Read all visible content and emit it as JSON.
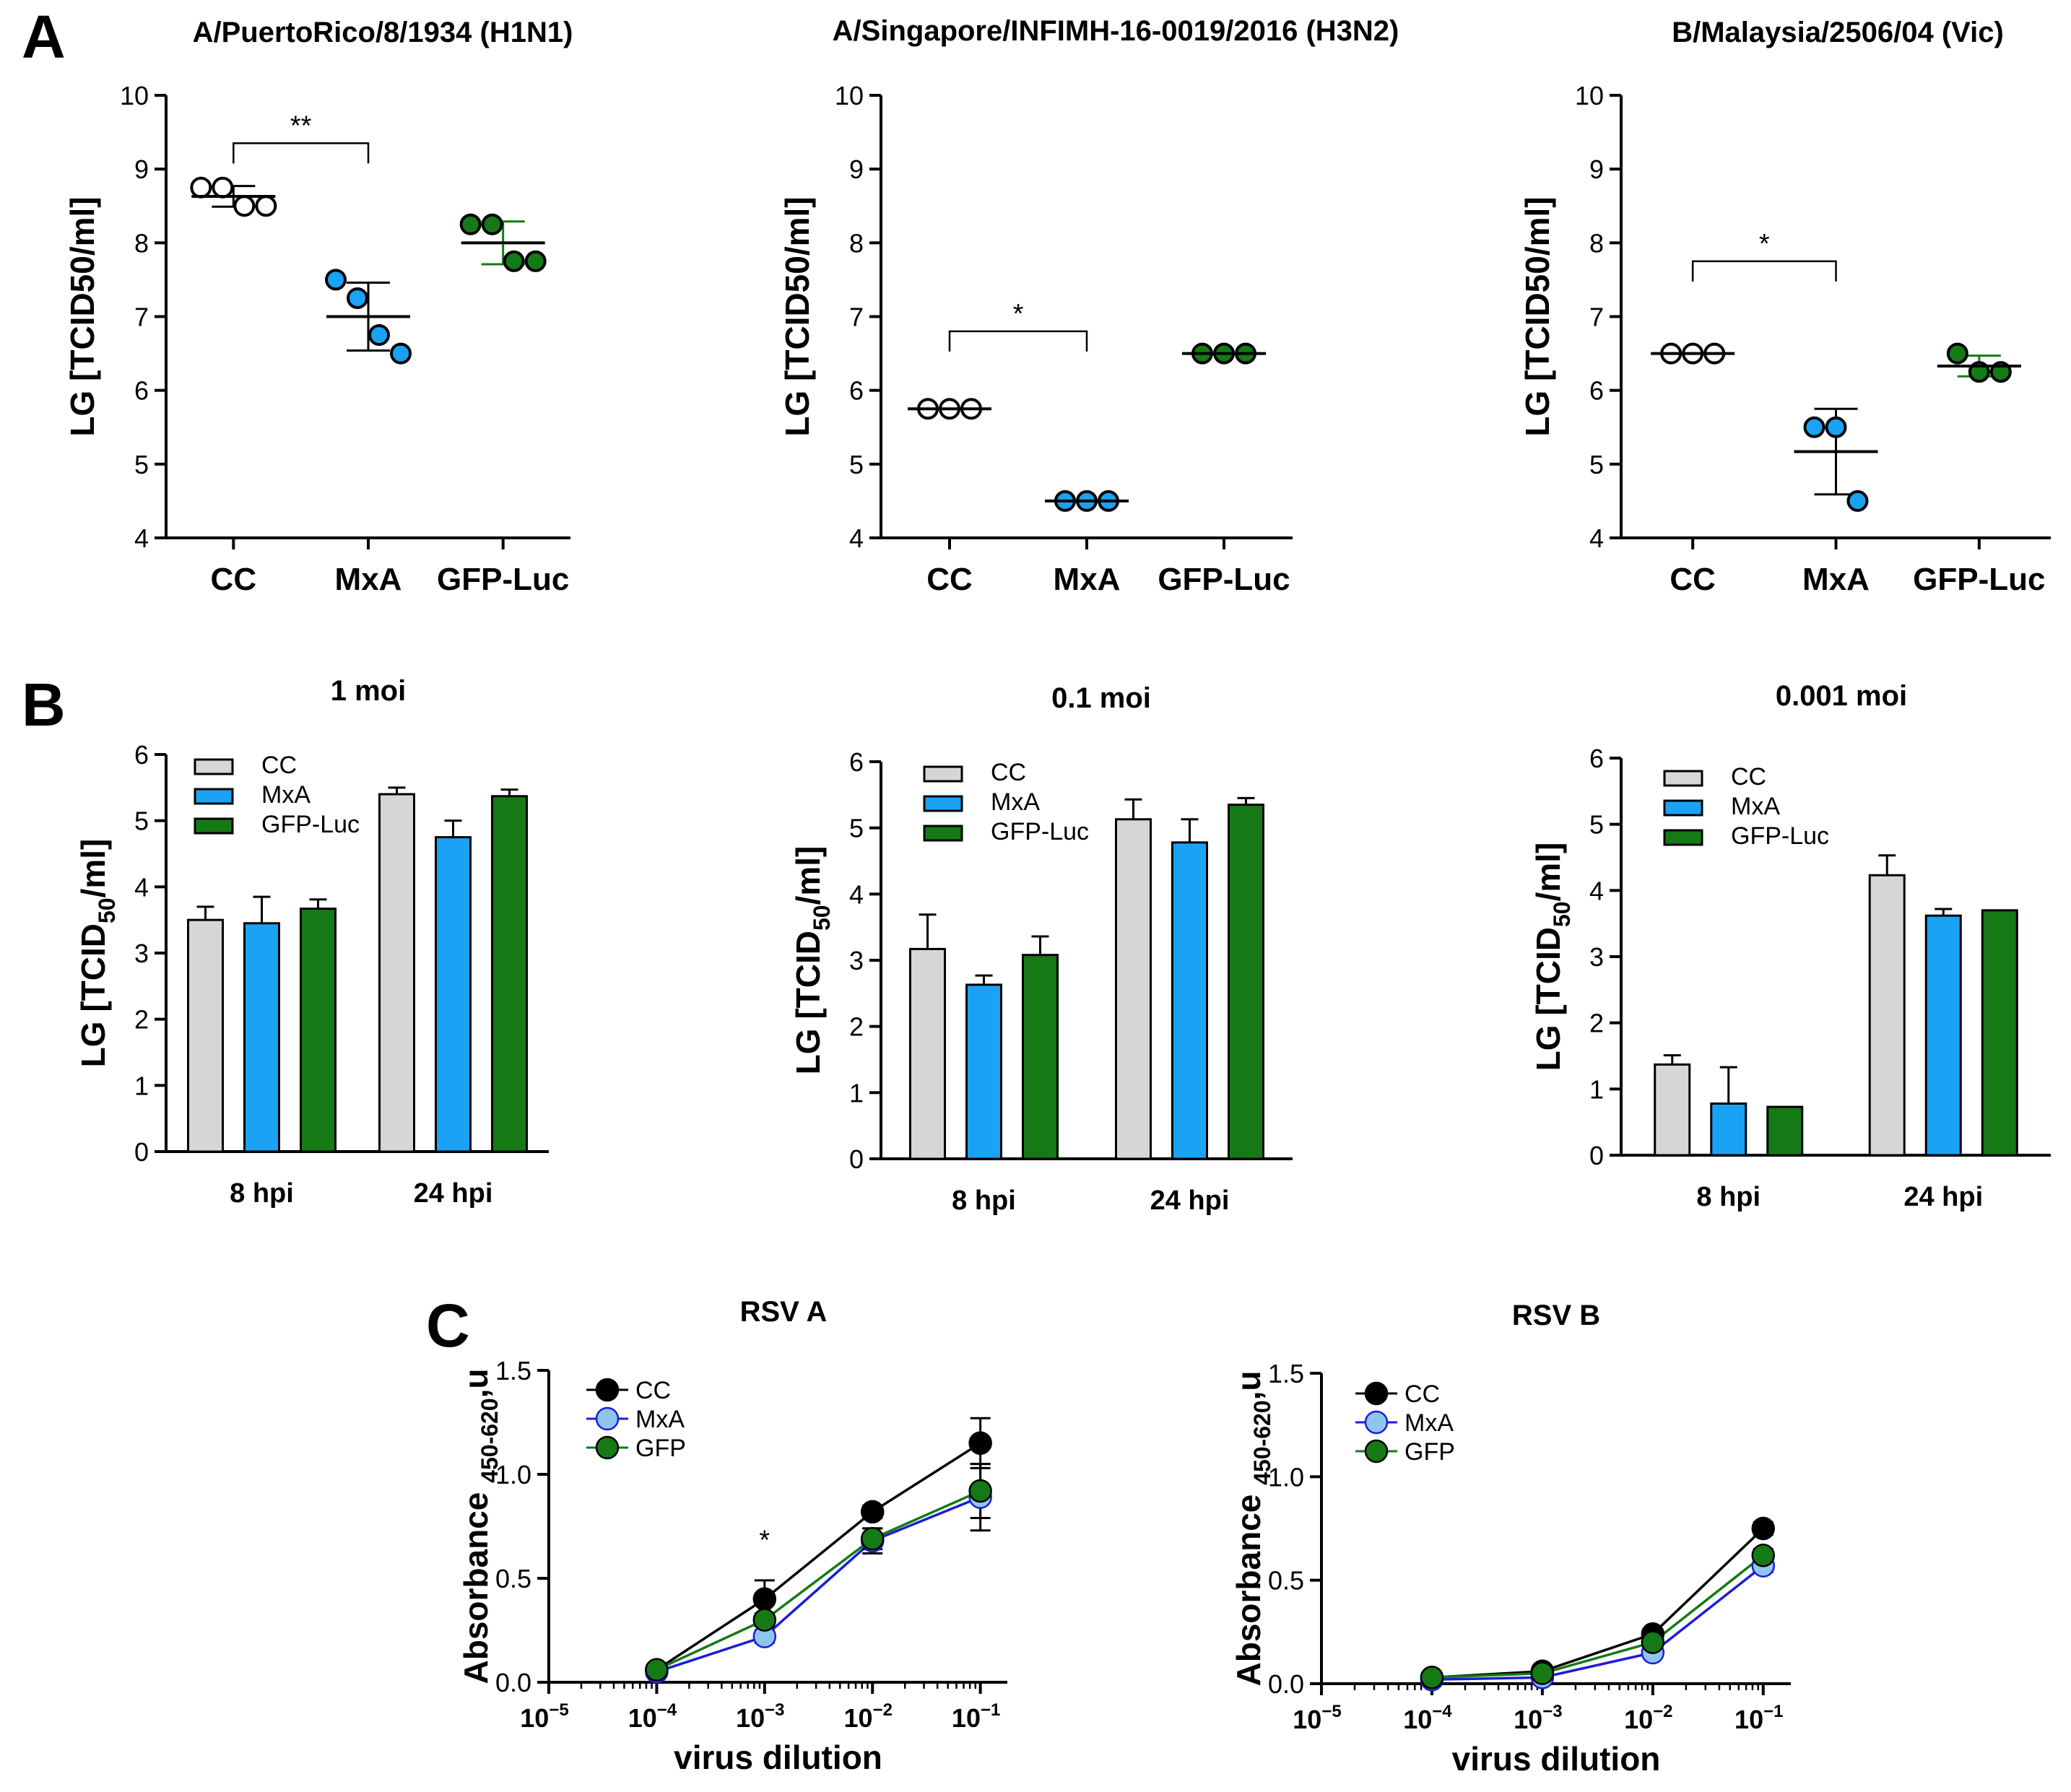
{
  "panels": [
    {
      "label": "A",
      "charts": [
        0,
        1,
        2
      ]
    },
    {
      "label": "B",
      "charts": [
        3,
        4,
        5
      ]
    },
    {
      "label": "C",
      "charts": [
        6,
        7
      ]
    }
  ],
  "chart_data": [
    {
      "type": "scatter",
      "title": "A/PuertoRico/8/1934 (H1N1)",
      "ylabel": "LG [TCID50/ml]",
      "xlabel": "",
      "ylim": [
        4,
        10
      ],
      "yticks": [
        4,
        5,
        6,
        7,
        8,
        9,
        10
      ],
      "categories": [
        "CC",
        "MxA",
        "GFP-Luc"
      ],
      "colors": [
        "#ffffff",
        "#1aa3f5",
        "#157a15"
      ],
      "points": [
        [
          8.75,
          8.75,
          8.5,
          8.5
        ],
        [
          7.5,
          7.25,
          6.75,
          6.5
        ],
        [
          8.25,
          8.25,
          7.75,
          7.75
        ]
      ],
      "mean": [
        8.63,
        7.0,
        8.0
      ],
      "sd": [
        0.14,
        0.46,
        0.29
      ],
      "significance": [
        {
          "from": 0,
          "to": 1,
          "y": 9.35,
          "label": "**"
        }
      ]
    },
    {
      "type": "scatter",
      "title": "A/Singapore/INFIMH-16-0019/2016 (H3N2)",
      "ylabel": "LG [TCID50/ml]",
      "xlabel": "",
      "ylim": [
        4,
        10
      ],
      "yticks": [
        4,
        5,
        6,
        7,
        8,
        9,
        10
      ],
      "categories": [
        "CC",
        "MxA",
        "GFP-Luc"
      ],
      "colors": [
        "#ffffff",
        "#1aa3f5",
        "#157a15"
      ],
      "points": [
        [
          5.75,
          5.75,
          5.75
        ],
        [
          4.5,
          4.5,
          4.5
        ],
        [
          6.5,
          6.5,
          6.5
        ]
      ],
      "mean": [
        5.75,
        4.5,
        6.5
      ],
      "sd": [
        0,
        0,
        0
      ],
      "significance": [
        {
          "from": 0,
          "to": 1,
          "y": 6.8,
          "label": "*"
        }
      ]
    },
    {
      "type": "scatter",
      "title": "B/Malaysia/2506/04 (Vic)",
      "ylabel": "LG [TCID50/ml]",
      "xlabel": "",
      "ylim": [
        4,
        10
      ],
      "yticks": [
        4,
        5,
        6,
        7,
        8,
        9,
        10
      ],
      "categories": [
        "CC",
        "MxA",
        "GFP-Luc"
      ],
      "colors": [
        "#ffffff",
        "#1aa3f5",
        "#157a15"
      ],
      "points": [
        [
          6.5,
          6.5,
          6.5
        ],
        [
          5.5,
          5.5,
          4.5
        ],
        [
          6.5,
          6.25,
          6.25
        ]
      ],
      "mean": [
        6.5,
        5.17,
        6.33
      ],
      "sd": [
        0,
        0.58,
        0.14
      ],
      "significance": [
        {
          "from": 0,
          "to": 1,
          "y": 7.75,
          "label": "*"
        }
      ]
    },
    {
      "type": "bar",
      "title": "1 moi",
      "ylabel": "LG [TCID50/ml]",
      "ylim": [
        0,
        6
      ],
      "yticks": [
        0,
        1,
        2,
        3,
        4,
        5,
        6
      ],
      "categories": [
        "8 hpi",
        "24 hpi"
      ],
      "series": [
        {
          "name": "CC",
          "color": "#d6d6d6",
          "values": [
            3.5,
            5.4
          ],
          "err": [
            0.2,
            0.1
          ]
        },
        {
          "name": "MxA",
          "color": "#1aa3f5",
          "values": [
            3.45,
            4.75
          ],
          "err": [
            0.4,
            0.25
          ]
        },
        {
          "name": "GFP-Luc",
          "color": "#157a15",
          "values": [
            3.67,
            5.37
          ],
          "err": [
            0.14,
            0.1
          ]
        }
      ]
    },
    {
      "type": "bar",
      "title": "0.1 moi",
      "ylabel": "LG [TCID50/ml]",
      "ylim": [
        0,
        6
      ],
      "yticks": [
        0,
        1,
        2,
        3,
        4,
        5,
        6
      ],
      "categories": [
        "8 hpi",
        "24 hpi"
      ],
      "series": [
        {
          "name": "CC",
          "color": "#d6d6d6",
          "values": [
            3.17,
            5.13
          ],
          "err": [
            0.52,
            0.3
          ]
        },
        {
          "name": "MxA",
          "color": "#1aa3f5",
          "values": [
            2.63,
            4.78
          ],
          "err": [
            0.14,
            0.35
          ]
        },
        {
          "name": "GFP-Luc",
          "color": "#157a15",
          "values": [
            3.08,
            5.35
          ],
          "err": [
            0.28,
            0.1
          ]
        }
      ]
    },
    {
      "type": "bar",
      "title": "0.001 moi",
      "ylabel": "LG [TCID50/ml]",
      "ylim": [
        0,
        6
      ],
      "yticks": [
        0,
        1,
        2,
        3,
        4,
        5,
        6
      ],
      "categories": [
        "8 hpi",
        "24 hpi"
      ],
      "series": [
        {
          "name": "CC",
          "color": "#d6d6d6",
          "values": [
            1.37,
            4.23
          ],
          "err": [
            0.14,
            0.3
          ]
        },
        {
          "name": "MxA",
          "color": "#1aa3f5",
          "values": [
            0.78,
            3.62
          ],
          "err": [
            0.55,
            0.1
          ]
        },
        {
          "name": "GFP-Luc",
          "color": "#157a15",
          "values": [
            0.73,
            3.7
          ],
          "err": [
            0,
            0
          ]
        }
      ]
    },
    {
      "type": "line",
      "title": "RSV A",
      "ylabel": "Absorbance 450-620,u",
      "ylabel_main": "Absorbance ",
      "ylabel_sub": "450-620",
      "ylabel_tail": ",u",
      "xlabel": "virus dilution",
      "ylim": [
        0,
        1.5
      ],
      "yticks": [
        0,
        0.5,
        1.0,
        1.5
      ],
      "ytick_labels": [
        "0.0",
        "0.5",
        "1.0",
        "1.5"
      ],
      "xscale": "log",
      "xlim_exp": [
        -5,
        -0.75
      ],
      "xtick_exps": [
        -5,
        -4,
        -3,
        -2,
        -1
      ],
      "xtick_base": "10",
      "xtick_labels": [
        "−5",
        "−4",
        "−3",
        "−2",
        "−1"
      ],
      "x_exp": [
        -4,
        -3,
        -2,
        -1
      ],
      "series": [
        {
          "name": "CC",
          "color": "#000000",
          "fill": "#000000",
          "values": [
            0.06,
            0.4,
            0.82,
            1.15
          ],
          "err": [
            0.02,
            0.09,
            0.03,
            0.12
          ]
        },
        {
          "name": "MxA",
          "color": "#1c1cd6",
          "fill": "#8ec6f0",
          "values": [
            0.05,
            0.22,
            0.68,
            0.89
          ],
          "err": [
            0.01,
            0.03,
            0.06,
            0.16
          ]
        },
        {
          "name": "GFP",
          "color": "#157a15",
          "fill": "#157a15",
          "values": [
            0.06,
            0.3,
            0.69,
            0.92
          ],
          "err": [
            0.01,
            0.03,
            0.05,
            0.13
          ]
        }
      ],
      "annotations": [
        {
          "x_exp": -3,
          "y": 0.64,
          "label": "*"
        }
      ]
    },
    {
      "type": "line",
      "title": "RSV B",
      "ylabel": "Absorbance 450-620,u",
      "ylabel_main": "Absorbance ",
      "ylabel_sub": "450-620",
      "ylabel_tail": ",u",
      "xlabel": "virus dilution",
      "ylim": [
        0,
        1.5
      ],
      "yticks": [
        0,
        0.5,
        1.0,
        1.5
      ],
      "ytick_labels": [
        "0.0",
        "0.5",
        "1.0",
        "1.5"
      ],
      "xscale": "log",
      "xlim_exp": [
        -5,
        -0.75
      ],
      "xtick_exps": [
        -5,
        -4,
        -3,
        -2,
        -1
      ],
      "xtick_base": "10",
      "xtick_labels": [
        "−5",
        "−4",
        "−3",
        "−2",
        "−1"
      ],
      "x_exp": [
        -4,
        -3,
        -2,
        -1
      ],
      "series": [
        {
          "name": "CC",
          "color": "#000000",
          "fill": "#000000",
          "values": [
            0.03,
            0.06,
            0.24,
            0.75
          ],
          "err": [
            0.01,
            0.01,
            0.02,
            0.03
          ]
        },
        {
          "name": "MxA",
          "color": "#1c1cd6",
          "fill": "#8ec6f0",
          "values": [
            0.02,
            0.03,
            0.15,
            0.57
          ],
          "err": [
            0.01,
            0.01,
            0.02,
            0.03
          ]
        },
        {
          "name": "GFP",
          "color": "#157a15",
          "fill": "#157a15",
          "values": [
            0.03,
            0.05,
            0.2,
            0.62
          ],
          "err": [
            0.01,
            0.01,
            0.02,
            0.03
          ]
        }
      ],
      "annotations": []
    }
  ]
}
